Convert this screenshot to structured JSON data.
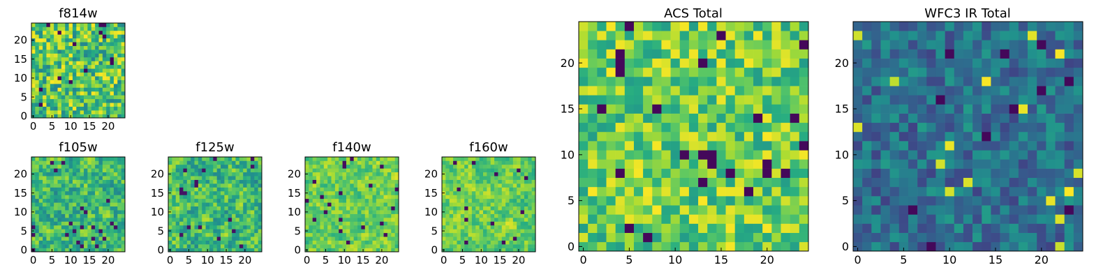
{
  "colors": {
    "colormap": "viridis",
    "frame": "#000000",
    "background": "#ffffff"
  },
  "chart_data": [
    {
      "id": "f814w",
      "type": "heatmap",
      "title": "f814w",
      "grid_size": 25,
      "xlim": [
        0,
        24
      ],
      "ylim": [
        0,
        24
      ],
      "xticks": [
        0,
        5,
        10,
        15,
        20
      ],
      "yticks": [
        0,
        5,
        10,
        15,
        20
      ],
      "values_seed": 11,
      "distribution": "busy-yellow-green"
    },
    {
      "id": "f105w",
      "type": "heatmap",
      "title": "f105w",
      "grid_size": 25,
      "xlim": [
        0,
        24
      ],
      "ylim": [
        0,
        24
      ],
      "xticks": [
        0,
        5,
        10,
        15,
        20
      ],
      "yticks": [
        0,
        5,
        10,
        15,
        20
      ],
      "values_seed": 23,
      "distribution": "smooth-green-yellow"
    },
    {
      "id": "f125w",
      "type": "heatmap",
      "title": "f125w",
      "grid_size": 25,
      "xlim": [
        0,
        24
      ],
      "ylim": [
        0,
        24
      ],
      "xticks": [
        0,
        5,
        10,
        15,
        20
      ],
      "yticks": [
        0,
        5,
        10,
        15,
        20
      ],
      "values_seed": 37,
      "distribution": "smooth-green-yellow"
    },
    {
      "id": "f140w",
      "type": "heatmap",
      "title": "f140w",
      "grid_size": 25,
      "xlim": [
        0,
        24
      ],
      "ylim": [
        0,
        24
      ],
      "xticks": [
        0,
        5,
        10,
        15,
        20
      ],
      "yticks": [
        0,
        5,
        10,
        15,
        20
      ],
      "values_seed": 41,
      "distribution": "bright-yellow-green"
    },
    {
      "id": "f160w",
      "type": "heatmap",
      "title": "f160w",
      "grid_size": 25,
      "xlim": [
        0,
        24
      ],
      "ylim": [
        0,
        24
      ],
      "xticks": [
        0,
        5,
        10,
        15,
        20
      ],
      "yticks": [
        0,
        5,
        10,
        15,
        20
      ],
      "values_seed": 53,
      "distribution": "bright-yellow-green"
    },
    {
      "id": "acs-total",
      "type": "heatmap",
      "title": "ACS Total",
      "grid_size": 25,
      "xlim": [
        0,
        24
      ],
      "ylim": [
        0,
        24
      ],
      "xticks": [
        0,
        5,
        10,
        15,
        20
      ],
      "yticks": [
        0,
        5,
        10,
        15,
        20
      ],
      "values_seed": 67,
      "distribution": "green-yellow-few-dark"
    },
    {
      "id": "wfc3-ir-total",
      "type": "heatmap",
      "title": "WFC3 IR Total",
      "grid_size": 25,
      "xlim": [
        0,
        24
      ],
      "ylim": [
        0,
        24
      ],
      "xticks": [
        0,
        5,
        10,
        15,
        20
      ],
      "yticks": [
        0,
        5,
        10,
        15,
        20
      ],
      "values_seed": 79,
      "distribution": "blue-dominant-few-bright"
    }
  ]
}
